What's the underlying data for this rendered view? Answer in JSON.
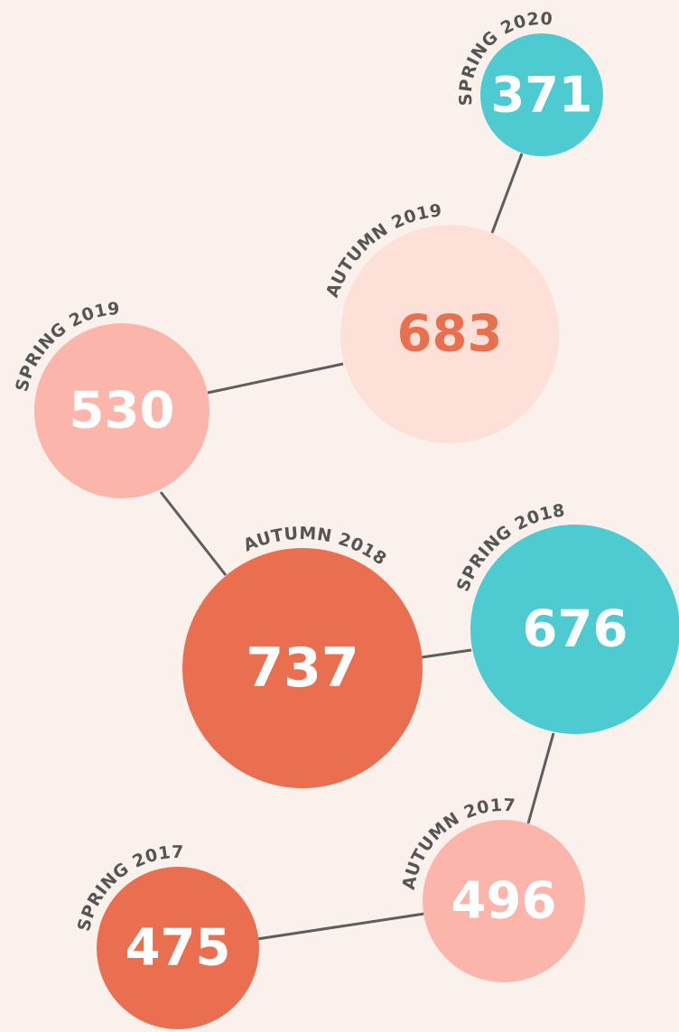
{
  "nodes": [
    {
      "label": "SPRING 2020",
      "value": "371"
    },
    {
      "label": "AUTUMN 2019",
      "value": "683"
    },
    {
      "label": "SPRING 2019",
      "value": "530"
    },
    {
      "label": "AUTUMN 2018",
      "value": "737"
    },
    {
      "label": "SPRING 2018",
      "value": "676"
    },
    {
      "label": "AUTUMN 2017",
      "value": "496"
    },
    {
      "label": "SPRING 2017",
      "value": "475"
    }
  ]
}
